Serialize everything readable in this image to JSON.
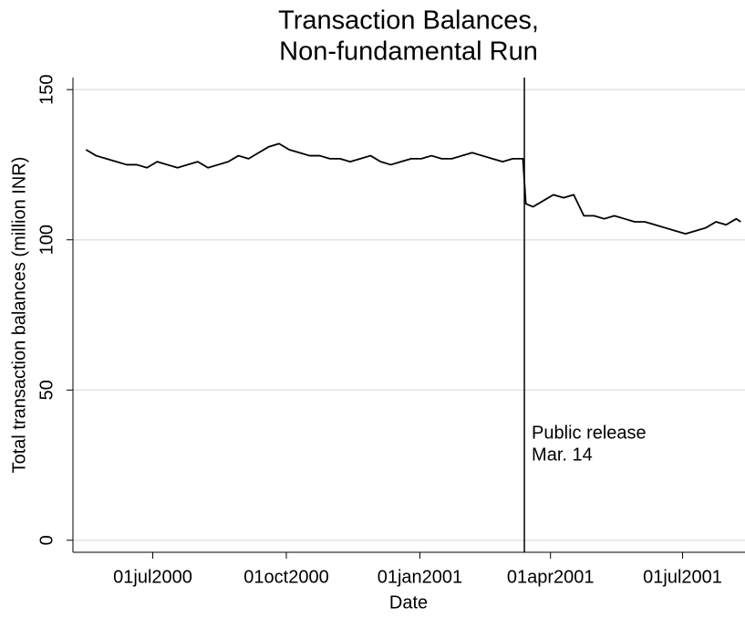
{
  "chart_data": {
    "type": "line",
    "title": [
      "Transaction Balances,",
      "Non-fundamental Run"
    ],
    "xlabel": "Date",
    "ylabel": "Total transaction balances (million INR)",
    "x": [
      "2000-05-16",
      "2000-05-23",
      "2000-05-30",
      "2000-06-06",
      "2000-06-13",
      "2000-06-20",
      "2000-06-27",
      "2000-07-04",
      "2000-07-11",
      "2000-07-18",
      "2000-07-25",
      "2000-08-01",
      "2000-08-08",
      "2000-08-15",
      "2000-08-22",
      "2000-08-29",
      "2000-09-05",
      "2000-09-12",
      "2000-09-19",
      "2000-09-26",
      "2000-10-03",
      "2000-10-10",
      "2000-10-17",
      "2000-10-24",
      "2000-10-31",
      "2000-11-07",
      "2000-11-14",
      "2000-11-21",
      "2000-11-28",
      "2000-12-05",
      "2000-12-12",
      "2000-12-19",
      "2000-12-26",
      "2001-01-02",
      "2001-01-09",
      "2001-01-16",
      "2001-01-23",
      "2001-01-30",
      "2001-02-06",
      "2001-02-13",
      "2001-02-20",
      "2001-02-27",
      "2001-03-06",
      "2001-03-13",
      "2001-03-15",
      "2001-03-20",
      "2001-03-27",
      "2001-04-03",
      "2001-04-10",
      "2001-04-17",
      "2001-04-24",
      "2001-05-01",
      "2001-05-08",
      "2001-05-15",
      "2001-05-22",
      "2001-05-29",
      "2001-06-05",
      "2001-06-12",
      "2001-06-19",
      "2001-06-26",
      "2001-07-03",
      "2001-07-10",
      "2001-07-17",
      "2001-07-24",
      "2001-07-31",
      "2001-08-07",
      "2001-08-10"
    ],
    "series": [
      {
        "color": "#000000",
        "values": [
          130,
          128,
          127,
          126,
          125,
          125,
          124,
          126,
          125,
          124,
          125,
          126,
          124,
          125,
          126,
          128,
          127,
          129,
          131,
          132,
          130,
          129,
          128,
          128,
          127,
          127,
          126,
          127,
          128,
          126,
          125,
          126,
          127,
          127,
          128,
          127,
          127,
          128,
          129,
          128,
          127,
          126,
          127,
          127,
          112,
          111,
          113,
          115,
          114,
          115,
          108,
          108,
          107,
          108,
          107,
          106,
          106,
          105,
          104,
          103,
          102,
          103,
          104,
          106,
          105,
          107,
          106
        ]
      }
    ],
    "xlim": [
      "2000-05-07",
      "2001-08-13"
    ],
    "xticks": [
      {
        "value": "2000-07-01",
        "label": "01jul2000"
      },
      {
        "value": "2000-10-01",
        "label": "01oct2000"
      },
      {
        "value": "2001-01-01",
        "label": "01jan2001"
      },
      {
        "value": "2001-04-01",
        "label": "01apr2001"
      },
      {
        "value": "2001-07-01",
        "label": "01jul2001"
      }
    ],
    "ylim": [
      -4,
      154
    ],
    "yticks": [
      0,
      50,
      100,
      150
    ],
    "grid": true,
    "annotations": [
      {
        "x": "2001-03-14",
        "text": [
          "Public release",
          "Mar. 14"
        ]
      }
    ]
  }
}
